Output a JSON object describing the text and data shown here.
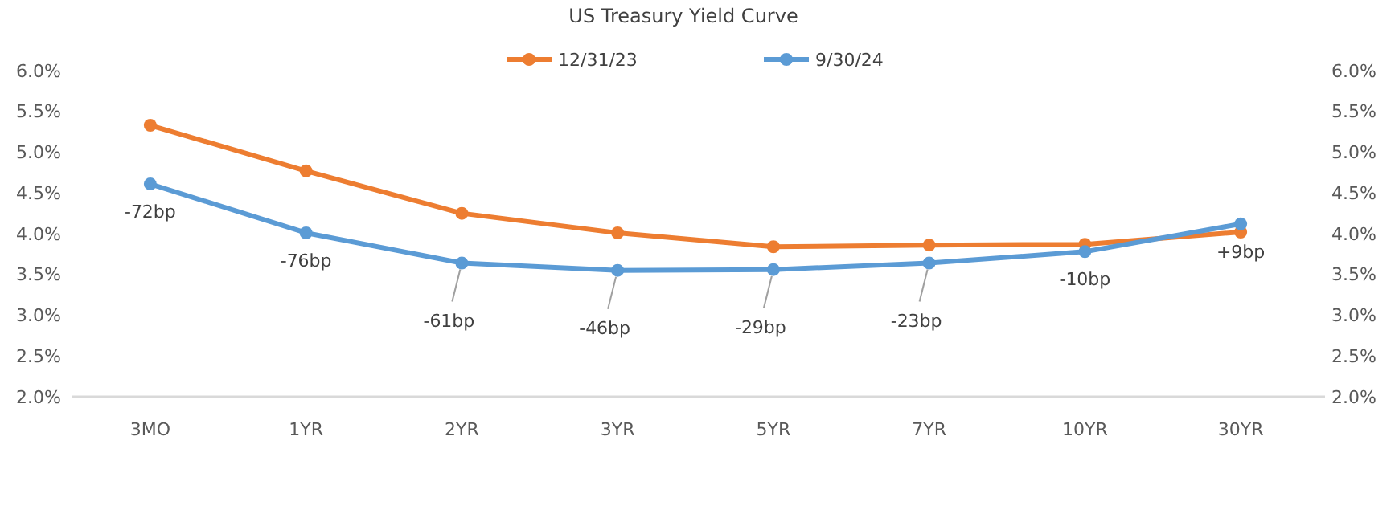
{
  "chart_data": {
    "type": "line",
    "title": "US Treasury Yield Curve",
    "categories": [
      "3MO",
      "1YR",
      "2YR",
      "3YR",
      "5YR",
      "7YR",
      "10YR",
      "30YR"
    ],
    "series": [
      {
        "name": "12/31/23",
        "color": "#ed7d31",
        "values": [
          5.33,
          4.77,
          4.25,
          4.01,
          3.84,
          3.86,
          3.87,
          4.02
        ]
      },
      {
        "name": "9/30/24",
        "color": "#5b9bd5",
        "values": [
          4.61,
          4.01,
          3.64,
          3.55,
          3.56,
          3.64,
          3.78,
          4.12
        ]
      }
    ],
    "ylim": [
      2,
      6
    ],
    "yticks": [
      {
        "value": 2,
        "label": "2.0%"
      },
      {
        "value": 2.5,
        "label": "2.5%"
      },
      {
        "value": 3,
        "label": "3.0%"
      },
      {
        "value": 3.5,
        "label": "3.5%"
      },
      {
        "value": 4,
        "label": "4.0%"
      },
      {
        "value": 4.5,
        "label": "4.5%"
      },
      {
        "value": 5,
        "label": "5.0%"
      },
      {
        "value": 5.5,
        "label": "5.5%"
      },
      {
        "value": 6,
        "label": "6.0%"
      }
    ],
    "y2lim": [
      2,
      6
    ],
    "y2ticks": [
      {
        "value": 2,
        "label": "2.0%"
      },
      {
        "value": 2.5,
        "label": "2.5%"
      },
      {
        "value": 3,
        "label": "3.0%"
      },
      {
        "value": 3.5,
        "label": "3.5%"
      },
      {
        "value": 4,
        "label": "4.0%"
      },
      {
        "value": 4.5,
        "label": "4.5%"
      },
      {
        "value": 5,
        "label": "5.0%"
      },
      {
        "value": 5.5,
        "label": "5.5%"
      },
      {
        "value": 6,
        "label": "6.0%"
      }
    ],
    "annotations": [
      {
        "text": "-72bp",
        "x": "3MO",
        "y": 4.61
      },
      {
        "text": "-76bp",
        "x": "1YR",
        "y": 4.01
      },
      {
        "text": "-61bp",
        "x": "2YR",
        "y": 3.64
      },
      {
        "text": "-46bp",
        "x": "3YR",
        "y": 3.55
      },
      {
        "text": "-29bp",
        "x": "5YR",
        "y": 3.56
      },
      {
        "text": "-23bp",
        "x": "7YR",
        "y": 3.64
      },
      {
        "text": "-10bp",
        "x": "10YR",
        "y": 3.78
      },
      {
        "text": "+9bp",
        "x": "30YR",
        "y": 4.12
      }
    ],
    "legend": "top",
    "marker": "circle",
    "line_style": "solid",
    "grid": false
  }
}
